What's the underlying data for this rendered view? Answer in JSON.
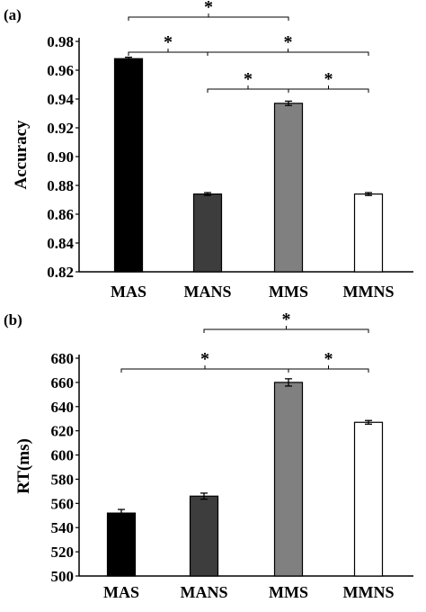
{
  "chart_data": [
    {
      "type": "bar",
      "panel_label": "(a)",
      "ylabel": "Accuracy",
      "categories": [
        "MAS",
        "MANS",
        "MMS",
        "MMNS"
      ],
      "values": [
        0.968,
        0.874,
        0.937,
        0.874
      ],
      "errors": [
        0.001,
        0.001,
        0.0015,
        0.001
      ],
      "bar_colors": [
        "#000000",
        "#3d3d3d",
        "#808080",
        "#ffffff"
      ],
      "ylim": [
        0.82,
        0.98
      ],
      "yticks": [
        "0.82",
        "0.84",
        "0.86",
        "0.88",
        "0.90",
        "0.92",
        "0.94",
        "0.96",
        "0.98"
      ],
      "significance": [
        {
          "from": "MAS",
          "to": "MMS",
          "label": "*"
        },
        {
          "from": "MAS",
          "to": "MANS",
          "label": "*"
        },
        {
          "from": "MANS",
          "to": "MMNS",
          "label": "*"
        },
        {
          "from": "MANS",
          "to": "MMS",
          "label": "*"
        },
        {
          "from": "MMS",
          "to": "MMNS",
          "label": "*"
        }
      ]
    },
    {
      "type": "bar",
      "panel_label": "(b)",
      "ylabel": "RT(ms)",
      "categories": [
        "MAS",
        "MANS",
        "MMS",
        "MMNS"
      ],
      "values": [
        552,
        566,
        660,
        627
      ],
      "errors": [
        3,
        2.5,
        3,
        1.5
      ],
      "bar_colors": [
        "#000000",
        "#3d3d3d",
        "#808080",
        "#ffffff"
      ],
      "ylim": [
        500,
        680
      ],
      "yticks": [
        "500",
        "520",
        "540",
        "560",
        "580",
        "600",
        "620",
        "640",
        "660",
        "680"
      ],
      "significance": [
        {
          "from": "MANS",
          "to": "MMNS",
          "label": "*"
        },
        {
          "from": "MAS",
          "to": "MMS",
          "label": "*"
        },
        {
          "from": "MMS",
          "to": "MMNS",
          "label": "*"
        }
      ]
    }
  ]
}
